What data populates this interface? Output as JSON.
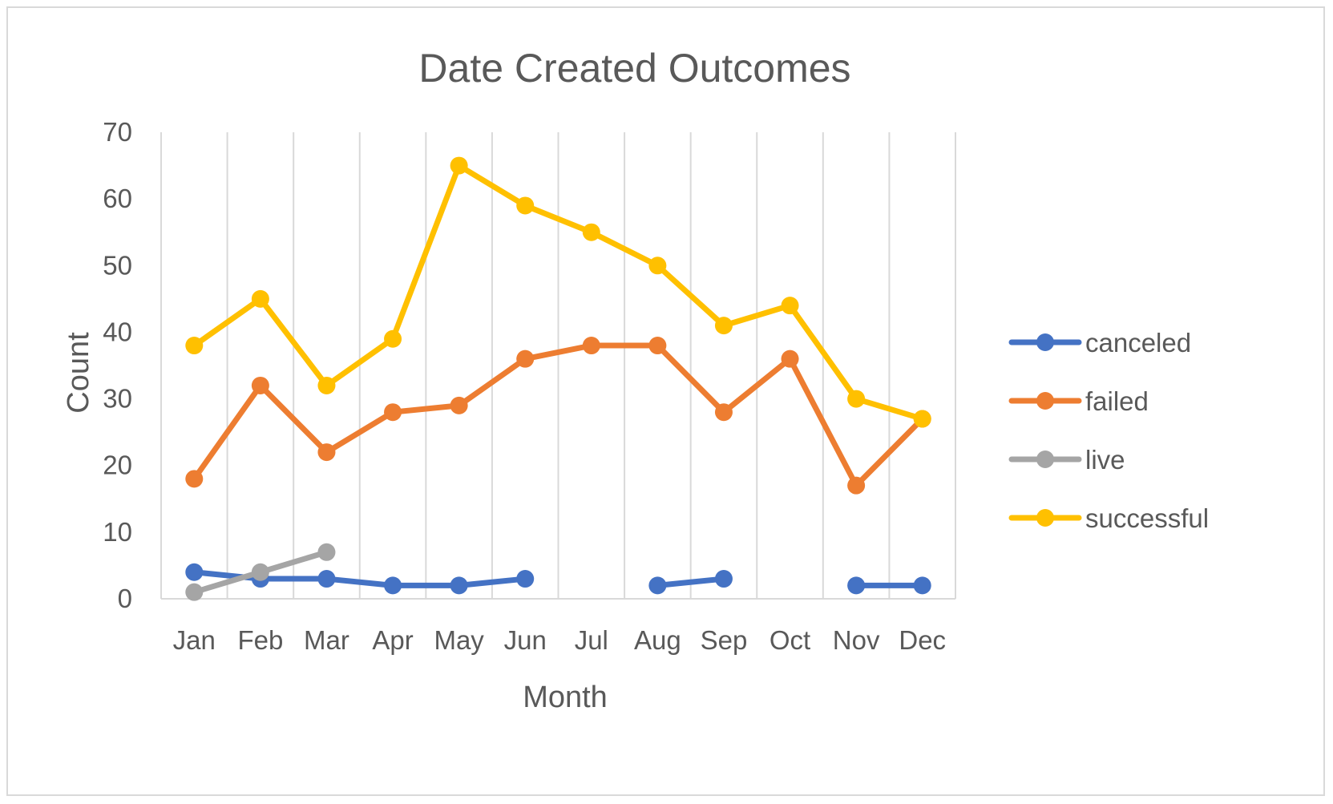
{
  "chart_data": {
    "type": "line",
    "title": "Date Created Outcomes",
    "xlabel": "Month",
    "ylabel": "Count",
    "categories": [
      "Jan",
      "Feb",
      "Mar",
      "Apr",
      "May",
      "Jun",
      "Jul",
      "Aug",
      "Sep",
      "Oct",
      "Nov",
      "Dec"
    ],
    "ylim": [
      0,
      70
    ],
    "yticks": [
      "0",
      "10",
      "20",
      "30",
      "40",
      "50",
      "60",
      "70"
    ],
    "grid": "vertical",
    "legend_position": "right",
    "series": [
      {
        "name": "canceled",
        "color": "#4472c4",
        "values": [
          4,
          3,
          3,
          2,
          2,
          3,
          null,
          2,
          3,
          null,
          2,
          2
        ]
      },
      {
        "name": "failed",
        "color": "#ed7d31",
        "values": [
          18,
          32,
          22,
          28,
          29,
          36,
          38,
          38,
          28,
          36,
          17,
          27
        ]
      },
      {
        "name": "live",
        "color": "#a5a5a5",
        "values": [
          1,
          4,
          7,
          null,
          null,
          null,
          null,
          null,
          null,
          null,
          null,
          null
        ]
      },
      {
        "name": "successful",
        "color": "#ffc000",
        "values": [
          38,
          45,
          32,
          39,
          65,
          59,
          55,
          50,
          41,
          44,
          30,
          27
        ]
      }
    ]
  }
}
